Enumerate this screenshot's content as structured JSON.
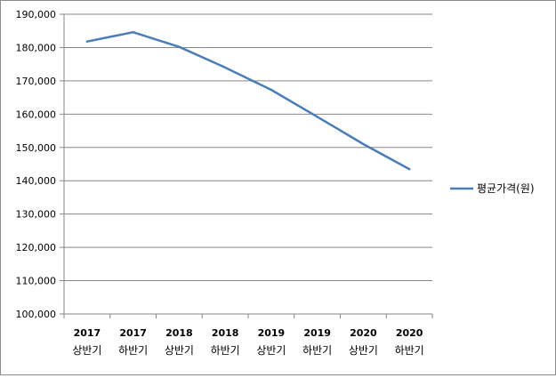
{
  "chart_data": {
    "type": "line",
    "categories": [
      [
        "2017",
        "상반기"
      ],
      [
        "2017",
        "하반기"
      ],
      [
        "2018",
        "상반기"
      ],
      [
        "2018",
        "하반기"
      ],
      [
        "2019",
        "상반기"
      ],
      [
        "2019",
        "하반기"
      ],
      [
        "2020",
        "상반기"
      ],
      [
        "2020",
        "하반기"
      ]
    ],
    "series": [
      {
        "name": "평균가격(원)",
        "color": "#4a7ebb",
        "values": [
          181800,
          184600,
          180200,
          174000,
          167300,
          159200,
          151000,
          143500
        ]
      }
    ],
    "ylim": [
      100000,
      190000
    ],
    "ytick_step": 10000,
    "ytick_labels": [
      "100,000",
      "110,000",
      "120,000",
      "130,000",
      "140,000",
      "150,000",
      "160,000",
      "170,000",
      "180,000",
      "190,000"
    ],
    "grid": true,
    "legend_position": "right",
    "title": "",
    "xlabel": "",
    "ylabel": ""
  }
}
